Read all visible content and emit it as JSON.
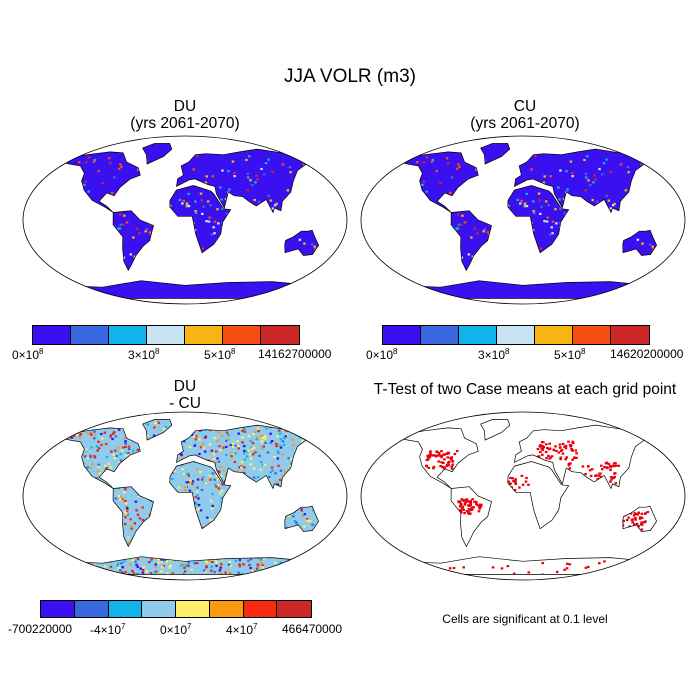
{
  "figure": {
    "title": "JJA VOLR (m3)"
  },
  "panels": [
    {
      "id": "du",
      "title_line1": "DU",
      "title_line2": "(yrs 2061-2070)"
    },
    {
      "id": "cu",
      "title_line1": "CU",
      "title_line2": "(yrs 2061-2070)"
    },
    {
      "id": "diff",
      "title_line1": "DU",
      "title_line2": "- CU"
    },
    {
      "id": "ttest",
      "title_line1": "T-Test of two Case means at each grid point",
      "title_line2": ""
    }
  ],
  "colorbars": {
    "du": {
      "colors": [
        "#3b10f0",
        "#3a68e0",
        "#11b3ec",
        "#c7e3f2",
        "#f8b413",
        "#f74d10",
        "#cc2828"
      ],
      "labels": {
        "min": "0×10",
        "min_exp": "8",
        "mid": "3×10",
        "mid_exp": "8",
        "hi": "5×10",
        "hi_exp": "8",
        "max": "14162700000"
      }
    },
    "cu": {
      "colors": [
        "#3b10f0",
        "#3a68e0",
        "#11b3ec",
        "#c7e3f2",
        "#f8b413",
        "#f74d10",
        "#cc2828"
      ],
      "labels": {
        "min": "0×10",
        "min_exp": "8",
        "mid": "3×10",
        "mid_exp": "8",
        "hi": "5×10",
        "hi_exp": "8",
        "max": "14620200000"
      }
    },
    "diff": {
      "colors": [
        "#3b10f0",
        "#3a68e0",
        "#11b3ec",
        "#91cbeb",
        "#fcf06a",
        "#f99a10",
        "#f62a10",
        "#cc2828"
      ],
      "labels": {
        "min": "-700220000",
        "m1": "-4×10",
        "m1_exp": "7",
        "zero": "0×10",
        "zero_exp": "7",
        "p1": "4×10",
        "p1_exp": "7",
        "max": "466470000"
      }
    }
  },
  "ttest": {
    "note": "Cells are significant at 0.1 level",
    "significant_color": "#e8000b"
  },
  "maps": {
    "land_color_abs": "#3b10f0",
    "land_color_diff": "#91cbeb",
    "ocean_color": "#ffffff"
  }
}
